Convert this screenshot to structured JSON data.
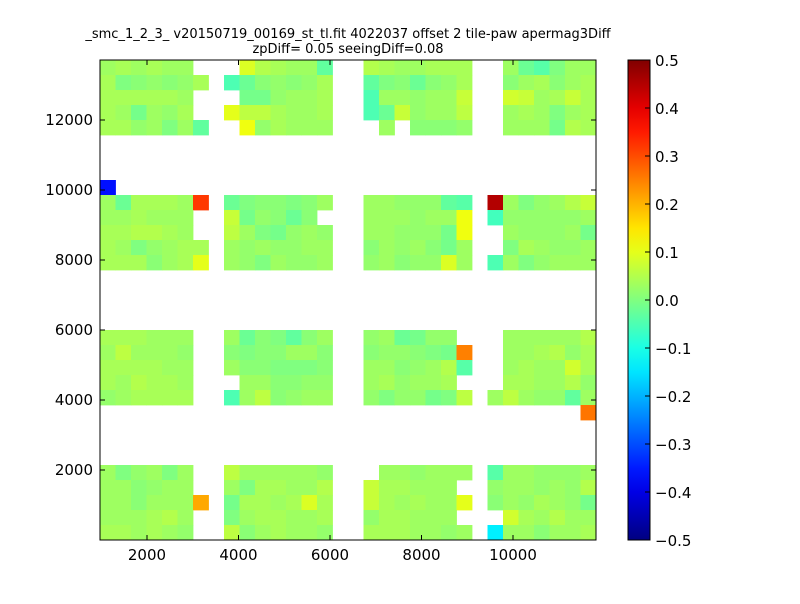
{
  "chart_data": {
    "type": "heatmap",
    "title_line1": "_smc_1_2_3_ v20150719_00169_st_tl.fit 4022037 offset 2 tile-paw apermag3Diff",
    "title_line2": "zpDiff= 0.05 seeingDiff=0.08",
    "xlabel": "",
    "ylabel": "",
    "xlim": [
      973,
      11814
    ],
    "ylim": [
      0,
      13714
    ],
    "xticks": [
      2000,
      4000,
      6000,
      8000,
      10000
    ],
    "yticks": [
      2000,
      4000,
      6000,
      8000,
      10000,
      12000
    ],
    "colormap": "jet",
    "vmin": -0.5,
    "vmax": 0.5,
    "colorbar_ticks": [
      "0.5",
      "0.4",
      "0.3",
      "0.2",
      "0.1",
      "0.0",
      "−0.1",
      "−0.2",
      "−0.3",
      "−0.4",
      "−0.5"
    ],
    "row_order": "top-to-bottom",
    "z": [
      [
        0.03,
        0.04,
        0.03,
        0.04,
        0.03,
        0.03,
        null,
        null,
        null,
        0.09,
        0.05,
        0.04,
        0.03,
        0.03,
        -0.03,
        null,
        null,
        0.05,
        0.04,
        0.03,
        0.03,
        0.04,
        0.04,
        0.04,
        null,
        null,
        0.03,
        -0.02,
        -0.04,
        0.0,
        0.03,
        0.03
      ],
      [
        0.04,
        0.0,
        0.01,
        0.02,
        0.01,
        0.02,
        0.04,
        null,
        -0.05,
        -0.02,
        0.01,
        0.02,
        0.01,
        0.02,
        0.04,
        null,
        null,
        -0.03,
        0.0,
        0.01,
        -0.02,
        0.01,
        0.02,
        0.04,
        null,
        null,
        0.01,
        0.03,
        0.04,
        0.01,
        0.03,
        0.04
      ],
      [
        0.04,
        0.04,
        0.04,
        0.04,
        0.04,
        0.03,
        null,
        null,
        null,
        -0.01,
        -0.01,
        0.02,
        0.03,
        0.03,
        0.04,
        null,
        null,
        -0.05,
        0.03,
        0.03,
        0.02,
        0.03,
        0.03,
        0.07,
        null,
        null,
        0.08,
        0.07,
        0.03,
        0.04,
        0.07,
        0.04
      ],
      [
        0.04,
        0.03,
        -0.01,
        0.03,
        0.02,
        0.04,
        null,
        null,
        0.1,
        0.06,
        0.06,
        0.04,
        0.03,
        0.03,
        0.04,
        null,
        null,
        -0.05,
        -0.02,
        0.07,
        0.02,
        0.03,
        0.03,
        0.06,
        null,
        null,
        0.03,
        0.04,
        0.03,
        0.0,
        0.03,
        0.04
      ],
      [
        0.04,
        0.04,
        0.02,
        0.03,
        0.0,
        0.03,
        -0.03,
        null,
        null,
        0.11,
        0.02,
        0.04,
        0.03,
        0.03,
        0.03,
        null,
        null,
        null,
        0.03,
        null,
        0.01,
        0.01,
        0.01,
        0.02,
        null,
        null,
        0.03,
        0.03,
        0.03,
        -0.01,
        0.05,
        0.04
      ],
      [
        null,
        null,
        null,
        null,
        null,
        null,
        null,
        null,
        null,
        null,
        null,
        null,
        null,
        null,
        null,
        null,
        null,
        null,
        null,
        null,
        null,
        null,
        null,
        null,
        null,
        null,
        null,
        null,
        null,
        null,
        null,
        null
      ],
      [
        null,
        null,
        null,
        null,
        null,
        null,
        null,
        null,
        null,
        null,
        null,
        null,
        null,
        null,
        null,
        null,
        null,
        null,
        null,
        null,
        null,
        null,
        null,
        null,
        null,
        null,
        null,
        null,
        null,
        null,
        null,
        null
      ],
      [
        null,
        null,
        null,
        null,
        null,
        null,
        null,
        null,
        null,
        null,
        null,
        null,
        null,
        null,
        null,
        null,
        null,
        null,
        null,
        null,
        null,
        null,
        null,
        null,
        null,
        null,
        null,
        null,
        null,
        null,
        null,
        null
      ],
      [
        -0.36,
        null,
        null,
        null,
        null,
        null,
        null,
        null,
        null,
        null,
        null,
        null,
        null,
        null,
        null,
        null,
        null,
        null,
        null,
        null,
        null,
        null,
        null,
        null,
        null,
        null,
        null,
        null,
        null,
        null,
        null,
        null
      ],
      [
        0.03,
        -0.02,
        0.04,
        0.04,
        0.04,
        0.03,
        0.32,
        null,
        -0.02,
        0.0,
        0.01,
        0.01,
        0.0,
        0.01,
        0.03,
        null,
        null,
        0.03,
        0.03,
        0.02,
        0.02,
        0.02,
        -0.03,
        -0.04,
        null,
        0.45,
        0.03,
        0.0,
        0.02,
        0.03,
        0.05,
        0.07
      ],
      [
        0.03,
        0.03,
        0.04,
        0.03,
        0.03,
        0.03,
        null,
        null,
        0.07,
        -0.01,
        0.02,
        0.01,
        -0.02,
        0.01,
        null,
        null,
        null,
        0.03,
        0.03,
        0.03,
        0.02,
        0.03,
        0.03,
        0.11,
        null,
        -0.06,
        0.02,
        0.02,
        0.02,
        0.02,
        0.02,
        0.03
      ],
      [
        0.04,
        0.04,
        0.05,
        0.05,
        0.04,
        0.03,
        null,
        null,
        0.06,
        0.03,
        0.0,
        -0.01,
        0.02,
        0.03,
        0.02,
        null,
        null,
        0.03,
        0.03,
        0.02,
        0.02,
        0.02,
        -0.01,
        0.11,
        null,
        null,
        0.03,
        0.02,
        0.02,
        0.02,
        0.03,
        -0.01
      ],
      [
        0.04,
        0.03,
        0.0,
        0.02,
        0.03,
        0.04,
        0.04,
        null,
        0.03,
        0.02,
        0.03,
        0.02,
        0.02,
        0.03,
        0.03,
        null,
        null,
        0.01,
        0.03,
        0.02,
        0.03,
        0.01,
        -0.01,
        0.03,
        null,
        null,
        0.0,
        0.04,
        0.03,
        0.02,
        0.02,
        0.03
      ],
      [
        0.04,
        0.04,
        0.04,
        0.01,
        0.03,
        0.04,
        0.1,
        null,
        0.03,
        0.02,
        0.0,
        0.03,
        0.02,
        0.02,
        0.03,
        null,
        null,
        0.02,
        0.03,
        0.01,
        0.02,
        0.02,
        0.09,
        0.03,
        null,
        -0.05,
        0.03,
        0.0,
        0.02,
        0.03,
        0.03,
        0.03
      ],
      [
        null,
        null,
        null,
        null,
        null,
        null,
        null,
        null,
        null,
        null,
        null,
        null,
        null,
        null,
        null,
        null,
        null,
        null,
        null,
        null,
        null,
        null,
        null,
        null,
        null,
        null,
        null,
        null,
        null,
        null,
        null,
        null
      ],
      [
        null,
        null,
        null,
        null,
        null,
        null,
        null,
        null,
        null,
        null,
        null,
        null,
        null,
        null,
        null,
        null,
        null,
        null,
        null,
        null,
        null,
        null,
        null,
        null,
        null,
        null,
        null,
        null,
        null,
        null,
        null,
        null
      ],
      [
        null,
        null,
        null,
        null,
        null,
        null,
        null,
        null,
        null,
        null,
        null,
        null,
        null,
        null,
        null,
        null,
        null,
        null,
        null,
        null,
        null,
        null,
        null,
        null,
        null,
        null,
        null,
        null,
        null,
        null,
        null,
        null
      ],
      [
        null,
        null,
        null,
        null,
        null,
        null,
        null,
        null,
        null,
        null,
        null,
        null,
        null,
        null,
        null,
        null,
        null,
        null,
        null,
        null,
        null,
        null,
        null,
        null,
        null,
        null,
        null,
        null,
        null,
        null,
        null,
        null
      ],
      [
        0.04,
        0.04,
        0.04,
        0.03,
        0.03,
        0.03,
        null,
        null,
        0.03,
        -0.02,
        0.01,
        0.0,
        -0.03,
        0.01,
        0.03,
        null,
        null,
        0.02,
        0.03,
        -0.02,
        -0.01,
        0.02,
        0.02,
        null,
        null,
        null,
        0.03,
        0.03,
        0.03,
        0.03,
        0.03,
        0.05
      ],
      [
        0.03,
        0.06,
        0.03,
        0.03,
        0.03,
        0.02,
        null,
        null,
        0.01,
        0.0,
        0.01,
        0.01,
        0.03,
        0.03,
        0.01,
        null,
        null,
        0.01,
        0.02,
        0.02,
        0.01,
        0.0,
        -0.01,
        0.25,
        null,
        null,
        0.03,
        0.03,
        0.04,
        0.05,
        0.02,
        0.04
      ],
      [
        0.04,
        0.04,
        0.04,
        0.04,
        0.03,
        0.03,
        null,
        null,
        0.03,
        0.01,
        0.01,
        0.0,
        0.0,
        0.0,
        0.01,
        null,
        null,
        0.03,
        0.03,
        0.01,
        0.02,
        0.03,
        0.05,
        -0.04,
        null,
        null,
        0.03,
        0.04,
        0.03,
        0.03,
        0.08,
        0.04
      ],
      [
        0.04,
        0.03,
        0.05,
        0.04,
        0.04,
        0.03,
        null,
        null,
        null,
        0.03,
        0.03,
        0.01,
        0.01,
        0.02,
        0.02,
        null,
        null,
        0.03,
        0.04,
        0.02,
        0.03,
        0.03,
        0.04,
        null,
        null,
        null,
        0.04,
        0.04,
        0.03,
        0.03,
        0.05,
        0.02
      ],
      [
        0.02,
        0.03,
        0.04,
        0.04,
        0.04,
        0.04,
        null,
        null,
        -0.05,
        0.03,
        0.06,
        0.01,
        0.02,
        0.03,
        0.03,
        null,
        null,
        0.02,
        0.0,
        0.02,
        0.02,
        -0.01,
        0.0,
        0.06,
        null,
        0.03,
        0.06,
        0.03,
        0.02,
        0.02,
        -0.03,
        0.03
      ],
      [
        null,
        null,
        null,
        null,
        null,
        null,
        null,
        null,
        null,
        null,
        null,
        null,
        null,
        null,
        null,
        null,
        null,
        null,
        null,
        null,
        null,
        null,
        null,
        null,
        null,
        null,
        null,
        null,
        null,
        null,
        null,
        0.26
      ],
      [
        null,
        null,
        null,
        null,
        null,
        null,
        null,
        null,
        null,
        null,
        null,
        null,
        null,
        null,
        null,
        null,
        null,
        null,
        null,
        null,
        null,
        null,
        null,
        null,
        null,
        null,
        null,
        null,
        null,
        null,
        null,
        null
      ],
      [
        null,
        null,
        null,
        null,
        null,
        null,
        null,
        null,
        null,
        null,
        null,
        null,
        null,
        null,
        null,
        null,
        null,
        null,
        null,
        null,
        null,
        null,
        null,
        null,
        null,
        null,
        null,
        null,
        null,
        null,
        null,
        null
      ],
      [
        null,
        null,
        null,
        null,
        null,
        null,
        null,
        null,
        null,
        null,
        null,
        null,
        null,
        null,
        null,
        null,
        null,
        null,
        null,
        null,
        null,
        null,
        null,
        null,
        null,
        null,
        null,
        null,
        null,
        null,
        null,
        null
      ],
      [
        0.03,
        0.0,
        0.02,
        0.03,
        0.0,
        0.03,
        null,
        null,
        0.06,
        0.03,
        0.03,
        0.03,
        0.03,
        0.03,
        0.02,
        null,
        null,
        null,
        0.03,
        0.03,
        0.02,
        0.03,
        0.03,
        0.03,
        null,
        -0.04,
        0.03,
        0.03,
        0.02,
        0.02,
        0.02,
        0.03
      ],
      [
        0.03,
        0.03,
        0.01,
        0.02,
        0.03,
        0.03,
        null,
        null,
        0.03,
        0.0,
        0.04,
        0.04,
        0.03,
        0.03,
        0.05,
        null,
        null,
        0.07,
        0.04,
        0.04,
        0.03,
        0.03,
        0.03,
        null,
        null,
        0.02,
        0.03,
        0.03,
        0.02,
        0.03,
        0.02,
        0.05
      ],
      [
        0.03,
        0.03,
        0.01,
        0.03,
        0.03,
        0.03,
        0.21,
        null,
        -0.01,
        0.04,
        0.04,
        0.03,
        0.04,
        0.09,
        0.04,
        null,
        null,
        0.07,
        0.04,
        0.03,
        0.04,
        0.03,
        0.03,
        0.1,
        null,
        0.01,
        0.03,
        0.02,
        0.04,
        0.03,
        0.02,
        -0.01
      ],
      [
        0.03,
        0.03,
        0.03,
        0.04,
        0.05,
        0.03,
        null,
        null,
        0.0,
        0.03,
        0.04,
        0.04,
        0.03,
        0.03,
        0.04,
        null,
        null,
        0.02,
        0.04,
        0.04,
        0.03,
        0.03,
        0.03,
        null,
        null,
        null,
        0.08,
        0.04,
        0.03,
        0.05,
        0.03,
        0.03
      ],
      [
        0.04,
        0.04,
        0.03,
        0.04,
        0.03,
        0.02,
        null,
        null,
        0.06,
        0.01,
        0.03,
        0.04,
        0.03,
        0.03,
        0.02,
        null,
        null,
        0.04,
        0.04,
        0.04,
        0.03,
        0.03,
        0.02,
        0.03,
        null,
        -0.14,
        0.03,
        0.03,
        0.01,
        0.03,
        0.03,
        0.04
      ]
    ]
  }
}
